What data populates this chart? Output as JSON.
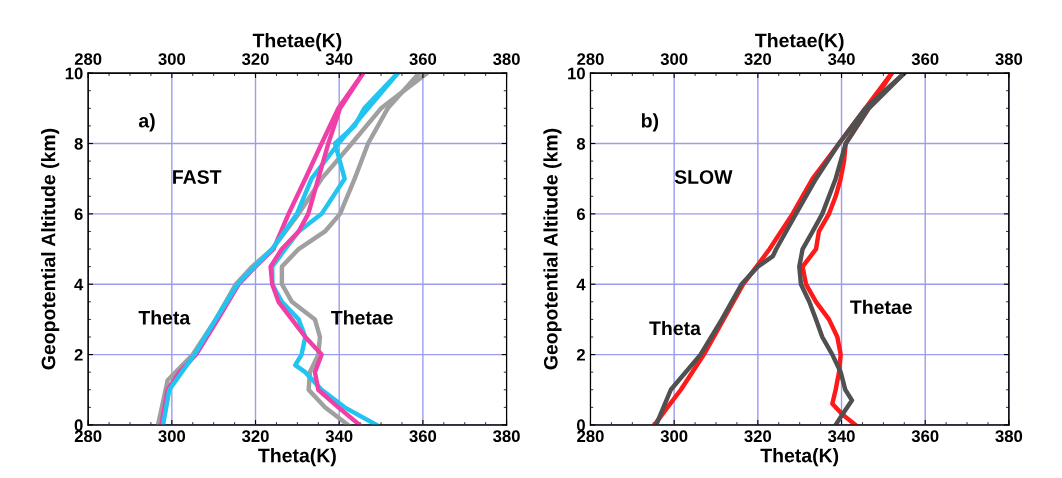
{
  "chart_data": [
    {
      "type": "line",
      "xlabel": "Theta(K)",
      "x2label": "Thetae(K)",
      "ylabel": "Geopotential Altitude (km)",
      "xlim": [
        280,
        380
      ],
      "xticks": [
        280,
        300,
        320,
        340,
        360,
        380
      ],
      "x2lim": [
        280,
        380
      ],
      "x2ticks": [
        280,
        300,
        320,
        340,
        360,
        380
      ],
      "ylim": [
        0,
        10
      ],
      "yticks": [
        0,
        2,
        4,
        6,
        8,
        10
      ],
      "grid": true,
      "marker": "none",
      "line_style": "solid",
      "annotations": [
        "a)",
        "FAST",
        "Theta",
        "Thetae"
      ],
      "series": [
        {
          "color": "#a0a0a0",
          "x": [
            296.7,
            299,
            305,
            310.5,
            315.3,
            319.2,
            324,
            330.3,
            335.8,
            343,
            350,
            361
          ],
          "values": [
            0,
            1.27,
            2,
            3,
            4,
            4.5,
            5,
            6,
            7,
            8,
            9,
            10
          ]
        },
        {
          "color": "#f040a8",
          "x": [
            297.5,
            299,
            301.8,
            305.8,
            311,
            316,
            320,
            324.3,
            327.9,
            331.9,
            335.8,
            339.8,
            345.7
          ],
          "values": [
            0,
            1,
            1.5,
            2,
            3,
            4,
            4.5,
            5,
            6,
            7,
            8,
            9,
            10
          ]
        },
        {
          "color": "#22c4f0",
          "x": [
            297.9,
            299.4,
            305.4,
            310.5,
            315.7,
            324,
            329.9,
            333.4,
            339.8,
            346.9,
            354
          ],
          "values": [
            0,
            1,
            2,
            3,
            4,
            5,
            6,
            7,
            8,
            9,
            10
          ]
        },
        {
          "color": "#a0a0a0",
          "x": [
            342.1,
            336.6,
            332.7,
            333,
            335,
            335.4,
            334.2,
            328.7,
            326.3,
            326.3,
            330.3,
            336.6,
            340.2,
            343.7,
            346.9,
            351.6,
            359.1
          ],
          "values": [
            0,
            0.5,
            1,
            1.5,
            2,
            2.5,
            3,
            3.5,
            4,
            4.5,
            5,
            5.5,
            6,
            7,
            8,
            9,
            10
          ]
        },
        {
          "color": "#22c4f0",
          "x": [
            348.9,
            341.3,
            335.8,
            331.9,
            329.5,
            331,
            331.9,
            330.3,
            326.3,
            324,
            324,
            327.1,
            330.3,
            335.8,
            341.3,
            339,
            343.7,
            346,
            354
          ],
          "values": [
            0,
            0.5,
            1,
            1.5,
            1.7,
            2,
            2.5,
            3,
            3.5,
            4,
            4.5,
            5,
            5.5,
            6,
            7,
            8,
            8.5,
            9,
            10
          ]
        },
        {
          "color": "#f040a8",
          "x": [
            344.9,
            339.8,
            335,
            334.2,
            335.8,
            331.9,
            328.7,
            325.5,
            324,
            323.6,
            326.3,
            330.3,
            332.6,
            335,
            337.4,
            340.2,
            345.7
          ],
          "values": [
            0,
            0.5,
            1,
            1.5,
            2,
            2.5,
            3,
            3.5,
            4,
            4.5,
            5,
            5.5,
            6,
            7,
            8,
            9,
            10
          ]
        }
      ]
    },
    {
      "type": "line",
      "xlabel": "Theta(K)",
      "x2label": "Thetae(K)",
      "ylabel": "Geopotential Altitude (km)",
      "xlim": [
        280,
        380
      ],
      "xticks": [
        280,
        300,
        320,
        340,
        360,
        380
      ],
      "x2lim": [
        280,
        380
      ],
      "x2ticks": [
        280,
        300,
        320,
        340,
        360,
        380
      ],
      "ylim": [
        0,
        10
      ],
      "yticks": [
        0,
        2,
        4,
        6,
        8,
        10
      ],
      "grid": true,
      "marker": "none",
      "line_style": "solid",
      "annotations": [
        "b)",
        "SLOW",
        "Theta",
        "Thetae"
      ],
      "series": [
        {
          "color": "#ff1a1a",
          "x": [
            295.3,
            298.4,
            301.6,
            307.1,
            311.8,
            316.5,
            319.7,
            322.8,
            328.3,
            333.1,
            339.4,
            345.7,
            352
          ],
          "values": [
            0,
            0.5,
            1,
            2,
            3,
            4,
            4.5,
            5,
            6,
            7,
            8,
            9,
            10
          ]
        },
        {
          "color": "#ff1a1a",
          "x": [
            343.3,
            340.2,
            337.8,
            338.2,
            338.6,
            339.4,
            339.8,
            339,
            337,
            333.9,
            331.5,
            330.7,
            333.9,
            334.6,
            337,
            338.6,
            339.8,
            340.6,
            341,
            346.5,
            352
          ],
          "values": [
            0,
            0.3,
            0.6,
            0.8,
            1,
            1.5,
            2,
            2.5,
            3,
            3.5,
            4,
            4.5,
            5,
            5.5,
            6,
            6.5,
            7,
            7.5,
            8,
            9,
            10
          ]
        },
        {
          "color": "#505050",
          "x": [
            295.7,
            299.2,
            306.3,
            311.4,
            316.1,
            320,
            323.6,
            324.4,
            329.1,
            333.9,
            339.4,
            345.7,
            355
          ],
          "values": [
            0,
            1,
            2,
            3,
            4,
            4.5,
            4.8,
            5,
            6,
            7,
            8,
            9,
            10
          ]
        },
        {
          "color": "#505050",
          "x": [
            338.6,
            340.2,
            342.5,
            340.9,
            339.8,
            337.8,
            335.4,
            333.9,
            332.3,
            330.3,
            329.9,
            330.7,
            333.1,
            335.4,
            338.6,
            341,
            346.5,
            355
          ],
          "values": [
            0,
            0.3,
            0.7,
            1,
            1.5,
            2,
            2.5,
            3,
            3.5,
            4,
            4.5,
            5,
            5.5,
            6,
            7,
            8,
            9,
            10
          ]
        }
      ]
    }
  ]
}
